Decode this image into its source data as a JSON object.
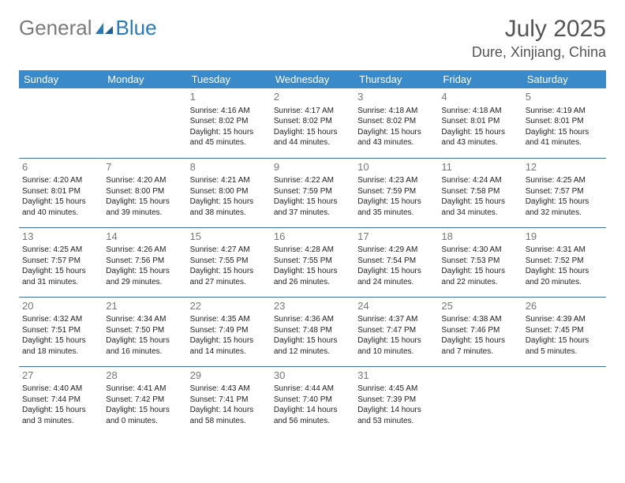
{
  "logo": {
    "general": "General",
    "blue": "Blue"
  },
  "title": "July 2025",
  "location": "Dure, Xinjiang, China",
  "colors": {
    "header_bg": "#3a89c9",
    "header_text": "#ffffff",
    "row_border": "#3a6fa0",
    "daynum_color": "#777777",
    "body_text": "#222222",
    "logo_gray": "#7a7a7a",
    "logo_blue": "#2a7ab8"
  },
  "day_headers": [
    "Sunday",
    "Monday",
    "Tuesday",
    "Wednesday",
    "Thursday",
    "Friday",
    "Saturday"
  ],
  "weeks": [
    [
      null,
      null,
      {
        "n": "1",
        "sunrise": "4:16 AM",
        "sunset": "8:02 PM",
        "daylight": "15 hours and 45 minutes."
      },
      {
        "n": "2",
        "sunrise": "4:17 AM",
        "sunset": "8:02 PM",
        "daylight": "15 hours and 44 minutes."
      },
      {
        "n": "3",
        "sunrise": "4:18 AM",
        "sunset": "8:02 PM",
        "daylight": "15 hours and 43 minutes."
      },
      {
        "n": "4",
        "sunrise": "4:18 AM",
        "sunset": "8:01 PM",
        "daylight": "15 hours and 43 minutes."
      },
      {
        "n": "5",
        "sunrise": "4:19 AM",
        "sunset": "8:01 PM",
        "daylight": "15 hours and 41 minutes."
      }
    ],
    [
      {
        "n": "6",
        "sunrise": "4:20 AM",
        "sunset": "8:01 PM",
        "daylight": "15 hours and 40 minutes."
      },
      {
        "n": "7",
        "sunrise": "4:20 AM",
        "sunset": "8:00 PM",
        "daylight": "15 hours and 39 minutes."
      },
      {
        "n": "8",
        "sunrise": "4:21 AM",
        "sunset": "8:00 PM",
        "daylight": "15 hours and 38 minutes."
      },
      {
        "n": "9",
        "sunrise": "4:22 AM",
        "sunset": "7:59 PM",
        "daylight": "15 hours and 37 minutes."
      },
      {
        "n": "10",
        "sunrise": "4:23 AM",
        "sunset": "7:59 PM",
        "daylight": "15 hours and 35 minutes."
      },
      {
        "n": "11",
        "sunrise": "4:24 AM",
        "sunset": "7:58 PM",
        "daylight": "15 hours and 34 minutes."
      },
      {
        "n": "12",
        "sunrise": "4:25 AM",
        "sunset": "7:57 PM",
        "daylight": "15 hours and 32 minutes."
      }
    ],
    [
      {
        "n": "13",
        "sunrise": "4:25 AM",
        "sunset": "7:57 PM",
        "daylight": "15 hours and 31 minutes."
      },
      {
        "n": "14",
        "sunrise": "4:26 AM",
        "sunset": "7:56 PM",
        "daylight": "15 hours and 29 minutes."
      },
      {
        "n": "15",
        "sunrise": "4:27 AM",
        "sunset": "7:55 PM",
        "daylight": "15 hours and 27 minutes."
      },
      {
        "n": "16",
        "sunrise": "4:28 AM",
        "sunset": "7:55 PM",
        "daylight": "15 hours and 26 minutes."
      },
      {
        "n": "17",
        "sunrise": "4:29 AM",
        "sunset": "7:54 PM",
        "daylight": "15 hours and 24 minutes."
      },
      {
        "n": "18",
        "sunrise": "4:30 AM",
        "sunset": "7:53 PM",
        "daylight": "15 hours and 22 minutes."
      },
      {
        "n": "19",
        "sunrise": "4:31 AM",
        "sunset": "7:52 PM",
        "daylight": "15 hours and 20 minutes."
      }
    ],
    [
      {
        "n": "20",
        "sunrise": "4:32 AM",
        "sunset": "7:51 PM",
        "daylight": "15 hours and 18 minutes."
      },
      {
        "n": "21",
        "sunrise": "4:34 AM",
        "sunset": "7:50 PM",
        "daylight": "15 hours and 16 minutes."
      },
      {
        "n": "22",
        "sunrise": "4:35 AM",
        "sunset": "7:49 PM",
        "daylight": "15 hours and 14 minutes."
      },
      {
        "n": "23",
        "sunrise": "4:36 AM",
        "sunset": "7:48 PM",
        "daylight": "15 hours and 12 minutes."
      },
      {
        "n": "24",
        "sunrise": "4:37 AM",
        "sunset": "7:47 PM",
        "daylight": "15 hours and 10 minutes."
      },
      {
        "n": "25",
        "sunrise": "4:38 AM",
        "sunset": "7:46 PM",
        "daylight": "15 hours and 7 minutes."
      },
      {
        "n": "26",
        "sunrise": "4:39 AM",
        "sunset": "7:45 PM",
        "daylight": "15 hours and 5 minutes."
      }
    ],
    [
      {
        "n": "27",
        "sunrise": "4:40 AM",
        "sunset": "7:44 PM",
        "daylight": "15 hours and 3 minutes."
      },
      {
        "n": "28",
        "sunrise": "4:41 AM",
        "sunset": "7:42 PM",
        "daylight": "15 hours and 0 minutes."
      },
      {
        "n": "29",
        "sunrise": "4:43 AM",
        "sunset": "7:41 PM",
        "daylight": "14 hours and 58 minutes."
      },
      {
        "n": "30",
        "sunrise": "4:44 AM",
        "sunset": "7:40 PM",
        "daylight": "14 hours and 56 minutes."
      },
      {
        "n": "31",
        "sunrise": "4:45 AM",
        "sunset": "7:39 PM",
        "daylight": "14 hours and 53 minutes."
      },
      null,
      null
    ]
  ],
  "labels": {
    "sunrise": "Sunrise:",
    "sunset": "Sunset:",
    "daylight": "Daylight:"
  }
}
